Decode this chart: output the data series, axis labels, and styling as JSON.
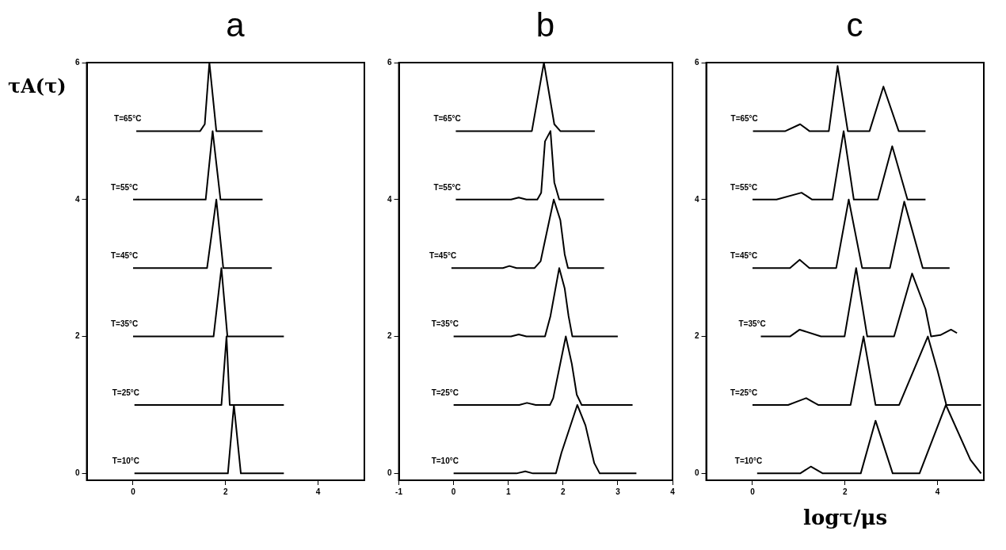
{
  "chart_data": [
    {
      "type": "line",
      "title": "a",
      "ylabel": "τA(τ)",
      "xlim": [
        -1,
        5
      ],
      "xticks": [
        0,
        2,
        4
      ],
      "ylim": [
        -0.1,
        6
      ],
      "yticks": [
        0,
        2,
        4,
        6
      ],
      "grid": false,
      "legend": false,
      "marker": "none",
      "series": [
        {
          "name": "T=65°C",
          "color": "#000000",
          "x": [
            0.07,
            1.45,
            1.55,
            1.65,
            1.8,
            2.8
          ],
          "values": [
            5,
            5,
            5.1,
            6,
            5,
            5
          ]
        },
        {
          "name": "T=55°C",
          "color": "#000000",
          "x": [
            0,
            1.57,
            1.72,
            1.89,
            2.8
          ],
          "values": [
            4,
            4,
            5,
            4,
            4
          ]
        },
        {
          "name": "T=45°C",
          "color": "#000000",
          "x": [
            0,
            1.6,
            1.8,
            1.95,
            3
          ],
          "values": [
            3,
            3,
            4,
            3,
            3
          ]
        },
        {
          "name": "T=35°C",
          "color": "#000000",
          "x": [
            0,
            1.74,
            1.91,
            2.04,
            3.26
          ],
          "values": [
            2,
            2,
            3,
            2,
            2
          ]
        },
        {
          "name": "T=25°C",
          "color": "#000000",
          "x": [
            0.03,
            1.91,
            2.02,
            2.09,
            3.26
          ],
          "values": [
            1,
            1,
            2,
            1,
            1
          ]
        },
        {
          "name": "T=10°C",
          "color": "#000000",
          "x": [
            0.03,
            2.05,
            2.18,
            2.33,
            3.26
          ],
          "values": [
            0,
            0,
            1,
            0,
            0
          ]
        }
      ]
    },
    {
      "type": "line",
      "title": "b",
      "xlim": [
        -1,
        4
      ],
      "xticks": [
        -1,
        0,
        1,
        2,
        3,
        4
      ],
      "ylim": [
        -0.1,
        6
      ],
      "yticks": [
        0,
        2,
        4,
        6
      ],
      "grid": false,
      "legend": false,
      "marker": "none",
      "series": [
        {
          "name": "T=65°C",
          "color": "#000000",
          "x": [
            0.04,
            1.43,
            1.65,
            1.84,
            1.95,
            2.58
          ],
          "values": [
            5,
            5,
            6,
            5.1,
            5,
            5
          ]
        },
        {
          "name": "T=55°C",
          "color": "#000000",
          "x": [
            0.04,
            1.05,
            1.19,
            1.33,
            1.53,
            1.6,
            1.67,
            1.77,
            1.84,
            1.93,
            2.75
          ],
          "values": [
            4,
            4,
            4.03,
            4,
            4,
            4.1,
            4.85,
            5,
            4.25,
            4,
            4
          ]
        },
        {
          "name": "T=45°C",
          "color": "#000000",
          "x": [
            -0.04,
            0.9,
            1.02,
            1.15,
            1.48,
            1.59,
            1.83,
            1.95,
            2.03,
            2.09,
            2.75
          ],
          "values": [
            3,
            3,
            3.03,
            3,
            3,
            3.1,
            4,
            3.7,
            3.2,
            3,
            3
          ]
        },
        {
          "name": "T=35°C",
          "color": "#000000",
          "x": [
            0,
            1.05,
            1.19,
            1.33,
            1.67,
            1.77,
            1.93,
            2.03,
            2.1,
            2.17,
            3
          ],
          "values": [
            2,
            2,
            2.03,
            2,
            2,
            2.3,
            3,
            2.7,
            2.3,
            2,
            2
          ]
        },
        {
          "name": "T=25°C",
          "color": "#000000",
          "x": [
            0,
            1.2,
            1.34,
            1.5,
            1.76,
            1.82,
            2.05,
            2.16,
            2.25,
            2.34,
            3.27
          ],
          "values": [
            1,
            1,
            1.03,
            1,
            1,
            1.1,
            2,
            1.6,
            1.15,
            1,
            1
          ]
        },
        {
          "name": "T=10°C",
          "color": "#000000",
          "x": [
            0,
            1.15,
            1.31,
            1.45,
            1.87,
            1.97,
            2.26,
            2.41,
            2.57,
            2.67,
            3.34
          ],
          "values": [
            0,
            0,
            0.03,
            0,
            0,
            0.3,
            1,
            0.7,
            0.15,
            0,
            0
          ]
        }
      ]
    },
    {
      "type": "line",
      "title": "c",
      "xlabel": "logτ/μs",
      "xlim": [
        -1,
        5
      ],
      "xticks": [
        0,
        2,
        4
      ],
      "ylim": [
        -0.1,
        6
      ],
      "yticks": [
        0,
        2,
        4,
        6
      ],
      "grid": false,
      "legend": false,
      "marker": "none",
      "series": [
        {
          "name": "T=65°C",
          "color": "#000000",
          "x": [
            0.01,
            0.71,
            1.03,
            1.23,
            1.65,
            1.84,
            2.06,
            2.53,
            2.83,
            3.16,
            3.74
          ],
          "values": [
            5,
            5,
            5.1,
            5,
            5,
            5.95,
            5,
            5,
            5.65,
            5,
            5
          ]
        },
        {
          "name": "T=55°C",
          "color": "#000000",
          "x": [
            0,
            0.52,
            1.06,
            1.29,
            1.73,
            1.97,
            2.19,
            2.71,
            3.02,
            3.35,
            3.74
          ],
          "values": [
            4,
            4,
            4.1,
            4,
            4,
            5,
            4,
            4,
            4.78,
            4,
            4
          ]
        },
        {
          "name": "T=45°C",
          "color": "#000000",
          "x": [
            0,
            0.81,
            1.02,
            1.23,
            1.81,
            2.08,
            2.37,
            2.97,
            3.28,
            3.68,
            4.26
          ],
          "values": [
            3,
            3,
            3.12,
            3,
            3,
            4,
            3,
            3,
            3.97,
            3,
            3
          ]
        },
        {
          "name": "T=35°C",
          "color": "#000000",
          "x": [
            0.18,
            0.81,
            1.02,
            1.48,
            1.99,
            2.24,
            2.48,
            3.06,
            3.45,
            3.74,
            3.86,
            4.06,
            4.29,
            4.42
          ],
          "values": [
            2,
            2,
            2.1,
            2,
            2,
            3,
            2,
            2,
            2.92,
            2.4,
            2,
            2.02,
            2.1,
            2.05
          ]
        },
        {
          "name": "T=25°C",
          "color": "#000000",
          "x": [
            0,
            0.77,
            1.16,
            1.42,
            2.12,
            2.4,
            2.66,
            3.17,
            3.48,
            3.79,
            4,
            4.19,
            4.94
          ],
          "values": [
            1,
            1,
            1.1,
            1,
            1,
            2,
            1,
            1,
            1.5,
            2,
            1.5,
            1,
            1
          ]
        },
        {
          "name": "T=10°C",
          "color": "#000000",
          "x": [
            0.1,
            1.03,
            1.26,
            1.52,
            2.34,
            2.66,
            3.03,
            3.61,
            4.18,
            4.71,
            4.94
          ],
          "values": [
            0,
            0,
            0.1,
            0,
            0,
            0.77,
            0,
            0,
            1,
            0.2,
            0
          ]
        }
      ]
    }
  ]
}
